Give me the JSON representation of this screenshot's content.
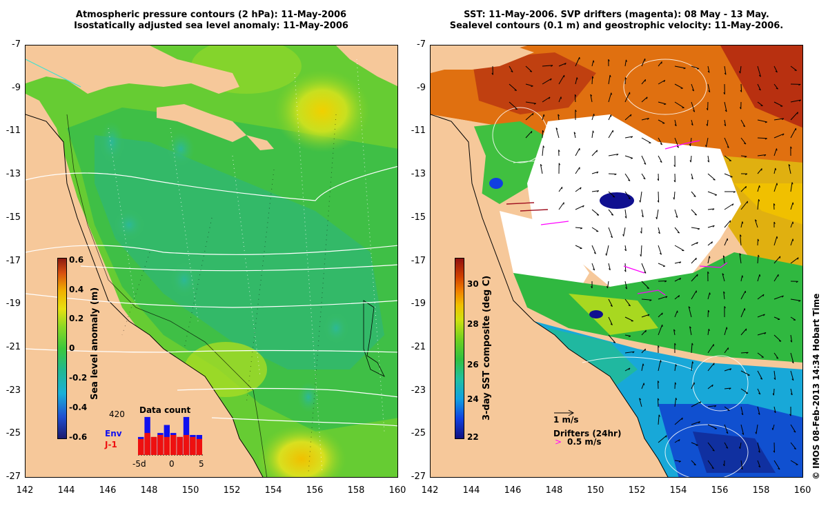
{
  "left_panel": {
    "title_line1": "Atmospheric pressure contours (2 hPa): 11-May-2006",
    "title_line2": "Isostatically adjusted sea level anomaly: 11-May-2006",
    "y_ticks": [
      "-7",
      "-9",
      "-11",
      "-13",
      "-15",
      "-17",
      "-19",
      "-21",
      "-23",
      "-25",
      "-27"
    ],
    "x_ticks": [
      "142",
      "144",
      "146",
      "148",
      "150",
      "152",
      "154",
      "156",
      "158",
      "160"
    ],
    "colorbar": {
      "label": "Sea level anomaly (m)",
      "ticks": [
        "0.6",
        "0.4",
        "0.2",
        "0",
        "-0.2",
        "-0.4",
        "-0.6"
      ],
      "range": [
        -0.6,
        0.6
      ]
    },
    "data_count": {
      "title": "Data count",
      "max_label": "420",
      "env_label": "Env",
      "j1_label": "J-1",
      "x_left": "-5d",
      "x_mid": "0",
      "x_right": "5",
      "env_color": "#1010ee",
      "j1_color": "#ee1010",
      "env_values": [
        0.45,
        0.95,
        0.45,
        0.55,
        0.75,
        0.55,
        0.45,
        0.95,
        0.5,
        0.5
      ],
      "j1_values": [
        0.4,
        0.55,
        0.45,
        0.5,
        0.45,
        0.5,
        0.45,
        0.5,
        0.45,
        0.4
      ]
    }
  },
  "right_panel": {
    "title_line1": "SST: 11-May-2006. SVP drifters (magenta): 08 May - 13 May.",
    "title_line2": "Sealevel contours (0.1 m) and geostrophic velocity: 11-May-2006.",
    "y_ticks": [
      "-7",
      "-9",
      "-11",
      "-13",
      "-15",
      "-17",
      "-19",
      "-21",
      "-23",
      "-25",
      "-27"
    ],
    "x_ticks": [
      "142",
      "144",
      "146",
      "148",
      "150",
      "152",
      "154",
      "156",
      "158",
      "160"
    ],
    "colorbar": {
      "label": "3-day SST composite (deg C)",
      "ticks": [
        "30",
        "28",
        "26",
        "24",
        "22"
      ],
      "range": [
        22,
        31
      ]
    },
    "velocity_legend": "1 m/s",
    "drifters_legend": "Drifters (24hr)",
    "drifter_speed": "0.5 m/s",
    "drifter_color": "#ff00ff"
  },
  "credit": "© IMOS 08-Feb-2013 14:34 Hobart Time",
  "colors": {
    "land": "#f6c89a",
    "sla_ramp": [
      "#1a1a6e",
      "#1f4fd0",
      "#18b0d8",
      "#20b890",
      "#3cc83c",
      "#66d02a",
      "#b8e020",
      "#f0d000",
      "#f09010",
      "#c04010",
      "#8a1a10"
    ],
    "sst_ramp": [
      "#101080",
      "#1040e0",
      "#10a0e0",
      "#20c0a0",
      "#30c040",
      "#70d020",
      "#d0e010",
      "#f0c000",
      "#f08000",
      "#d04000",
      "#901010"
    ]
  }
}
